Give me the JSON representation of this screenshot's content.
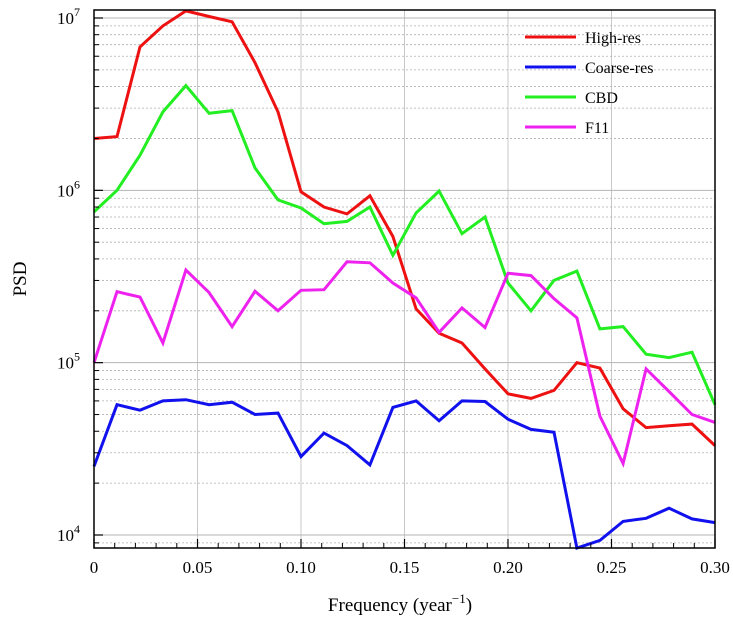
{
  "chart_data": {
    "type": "line",
    "title": "",
    "xlabel": "Frequency (year",
    "xlabel_sup": "−1",
    "xlabel_close": ")",
    "ylabel": "PSD",
    "xlim": [
      0,
      0.3
    ],
    "ylim": [
      8000,
      12000000
    ],
    "yscale": "log",
    "grid": true,
    "legend_position": "top-right",
    "x_ticks": [
      {
        "value": 0,
        "label": "0"
      },
      {
        "value": 0.05,
        "label": "0.05"
      },
      {
        "value": 0.1,
        "label": "0.10"
      },
      {
        "value": 0.15,
        "label": "0.15"
      },
      {
        "value": 0.2,
        "label": "0.20"
      },
      {
        "value": 0.25,
        "label": "0.25"
      },
      {
        "value": 0.3,
        "label": "0.30"
      }
    ],
    "y_ticks": [
      {
        "value": 10000,
        "base": "10",
        "exp": "4"
      },
      {
        "value": 100000,
        "base": "10",
        "exp": "5"
      },
      {
        "value": 1000000,
        "base": "10",
        "exp": "6"
      },
      {
        "value": 10000000,
        "base": "10",
        "exp": "7"
      }
    ],
    "x": [
      0,
      0.0111,
      0.0222,
      0.0333,
      0.0444,
      0.0556,
      0.0667,
      0.0778,
      0.0889,
      0.1,
      0.1111,
      0.1222,
      0.1333,
      0.1444,
      0.1556,
      0.1667,
      0.1778,
      0.1889,
      0.2,
      0.2111,
      0.2222,
      0.2333,
      0.2444,
      0.2556,
      0.2667,
      0.2778,
      0.2889,
      0.3
    ],
    "series": [
      {
        "name": "High-res",
        "color": "#ee1111",
        "values": [
          2000000,
          2050000,
          6800000,
          9000000,
          11000000,
          10200000,
          9500000,
          5500000,
          2850000,
          980000,
          800000,
          730000,
          930000,
          540000,
          205000,
          148000,
          130000,
          92000,
          66000,
          62000,
          69000,
          100000,
          93000,
          54000,
          42000,
          43000,
          44000,
          33000
        ]
      },
      {
        "name": "Coarse-res",
        "color": "#1111ee",
        "values": [
          25000,
          57000,
          53000,
          60000,
          61000,
          57000,
          59000,
          50000,
          51000,
          28500,
          39000,
          33000,
          25500,
          55000,
          60000,
          46000,
          60000,
          59500,
          47000,
          41000,
          39500,
          8400,
          9300,
          12000,
          12500,
          14300,
          12400,
          11800
        ]
      },
      {
        "name": "CBD",
        "color": "#22ee22",
        "values": [
          750000,
          1000000,
          1600000,
          2850000,
          4050000,
          2800000,
          2900000,
          1350000,
          880000,
          790000,
          640000,
          660000,
          800000,
          420000,
          740000,
          990000,
          560000,
          700000,
          290000,
          200000,
          300000,
          340000,
          157000,
          162000,
          112000,
          107000,
          115000,
          57000
        ]
      },
      {
        "name": "F11",
        "color": "#ee22ee",
        "values": [
          100000,
          258000,
          240000,
          130000,
          345000,
          255000,
          162000,
          260000,
          200000,
          263000,
          265000,
          385000,
          380000,
          290000,
          238000,
          150000,
          208000,
          160000,
          330000,
          320000,
          235000,
          182000,
          49000,
          26000,
          92000,
          68000,
          50000,
          45000
        ]
      }
    ]
  }
}
